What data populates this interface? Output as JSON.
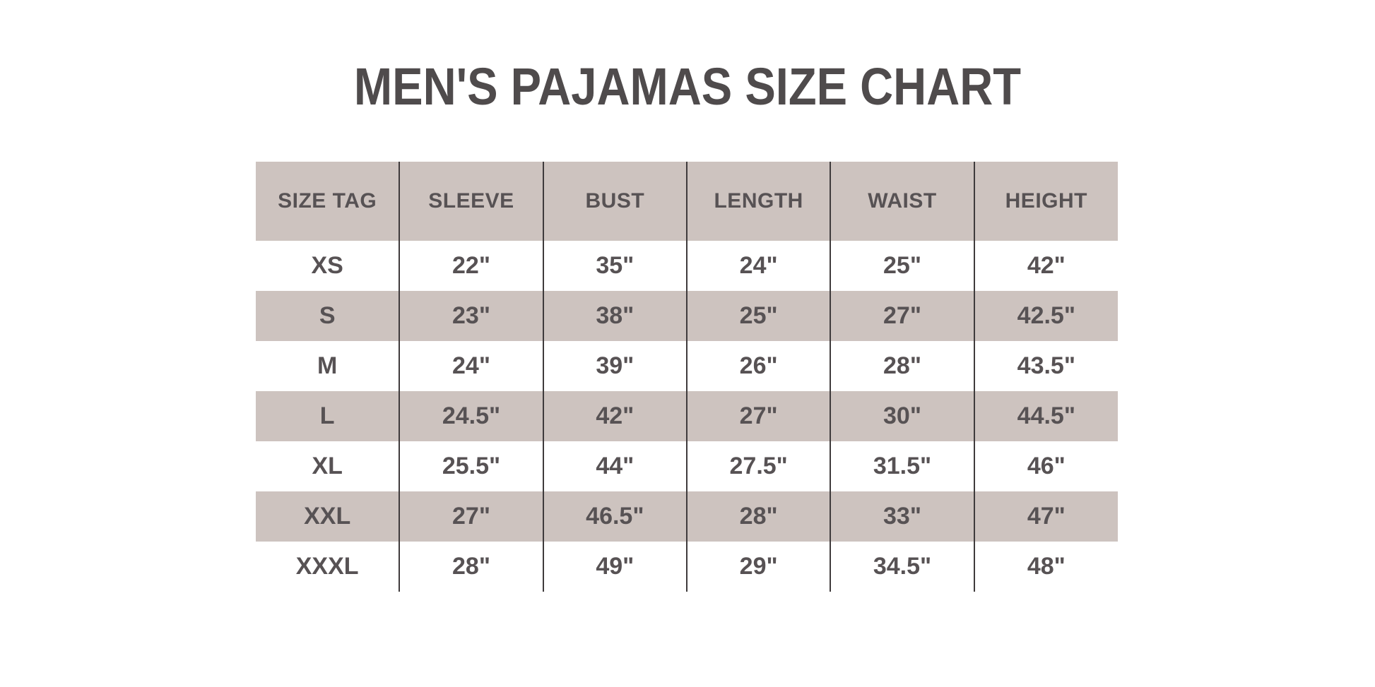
{
  "title": "MEN'S PAJAMAS SIZE CHART",
  "colors": {
    "background": "#ffffff",
    "band_taupe": "#cdc3bf",
    "grid_line": "#3f3b3c",
    "title_text": "#4f4b4c",
    "table_text": "#575254"
  },
  "chart_data": {
    "type": "table",
    "title": "MEN'S PAJAMAS SIZE CHART",
    "columns": [
      "SIZE TAG",
      "SLEEVE",
      "BUST",
      "LENGTH",
      "WAIST",
      "HEIGHT"
    ],
    "rows": [
      [
        "XS",
        "22\"",
        "35\"",
        "24\"",
        "25\"",
        "42\""
      ],
      [
        "S",
        "23\"",
        "38\"",
        "25\"",
        "27\"",
        "42.5\""
      ],
      [
        "M",
        "24\"",
        "39\"",
        "26\"",
        "28\"",
        "43.5\""
      ],
      [
        "L",
        "24.5\"",
        "42\"",
        "27\"",
        "30\"",
        "44.5\""
      ],
      [
        "XL",
        "25.5\"",
        "44\"",
        "27.5\"",
        "31.5\"",
        "46\""
      ],
      [
        "XXL",
        "27\"",
        "46.5\"",
        "28\"",
        "33\"",
        "47\""
      ],
      [
        "XXXL",
        "28\"",
        "49\"",
        "29\"",
        "34.5\"",
        "48\""
      ]
    ],
    "layout": {
      "header_band": "taupe",
      "row_banding": "alternating white/taupe starting with white after header",
      "grid": "internal vertical separators only, no outer border, no horizontal lines"
    }
  }
}
